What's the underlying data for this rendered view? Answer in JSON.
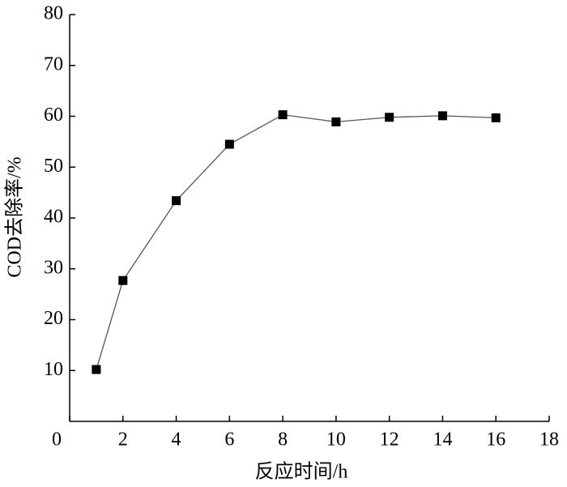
{
  "chart_data": {
    "type": "line",
    "x_label": "反应时间/h",
    "y_label": "COD去除率/%",
    "x": [
      1,
      2,
      4,
      6,
      8,
      10,
      12,
      14,
      16
    ],
    "series": [
      {
        "color": "#000000",
        "values": [
          10.2,
          27.7,
          43.4,
          54.5,
          60.3,
          58.9,
          59.8,
          60.1,
          59.7
        ]
      }
    ],
    "xlim": [
      0,
      18
    ],
    "xticks": [
      0,
      2,
      4,
      6,
      8,
      10,
      12,
      14,
      16,
      18
    ],
    "ylim": [
      0,
      80
    ],
    "yticks": [
      10,
      20,
      30,
      40,
      50,
      60,
      70,
      80
    ]
  }
}
